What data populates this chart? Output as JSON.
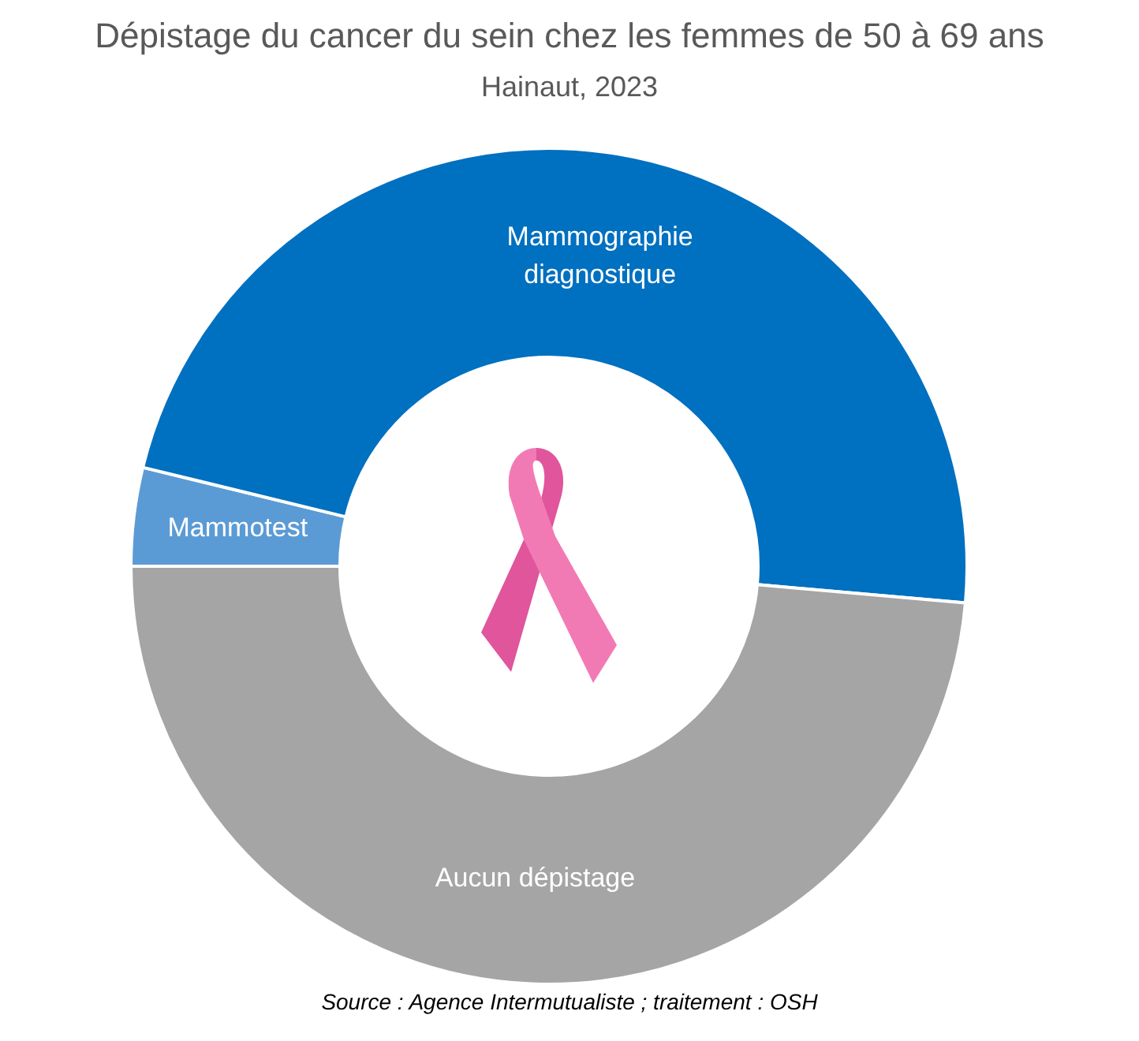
{
  "chart_data": {
    "type": "donut",
    "title": "Dépistage du cancer du sein chez les femmes de 50 à 69 ans",
    "subtitle": "Hainaut, 2023",
    "categories": [
      "Mammotest",
      "Mammographie diagnostique",
      "Aucun dépistage"
    ],
    "values": [
      3.8,
      47.6,
      48.6
    ],
    "colors": [
      "#5b9bd5",
      "#0070c0",
      "#a5a5a5"
    ],
    "annotations": [
      "Source : Agence Intermutualiste ; traitement : OSH"
    ]
  }
}
